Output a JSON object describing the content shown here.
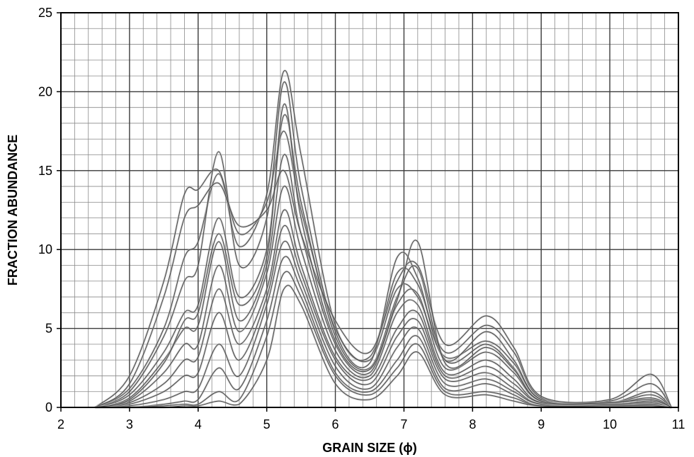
{
  "chart_data": {
    "type": "line",
    "title": "",
    "xlabel": "GRAIN SIZE (ϕ)",
    "ylabel": "FRACTION ABUNDANCE",
    "xlim": [
      2,
      11
    ],
    "ylim": [
      0,
      25
    ],
    "x_ticks": [
      2,
      3,
      4,
      5,
      6,
      7,
      8,
      9,
      10,
      11
    ],
    "y_ticks": [
      0,
      5,
      10,
      15,
      20,
      25
    ],
    "grid": true,
    "grid_minor_x_step": 0.2,
    "grid_minor_y_step": 1,
    "legend": "none",
    "line_color": "#3a3a3a",
    "series_count_depicted": 14,
    "series": [
      {
        "x": [
          2.5,
          3.0,
          3.5,
          3.8,
          4.0,
          4.3,
          4.6,
          5.0,
          5.25,
          5.5,
          6.0,
          6.5,
          6.9,
          7.2,
          7.6,
          8.2,
          8.6,
          9.0,
          10.0,
          10.6,
          10.9
        ],
        "values": [
          0,
          1.2,
          5.0,
          9.5,
          10.5,
          14.8,
          10.2,
          13.5,
          21.3,
          16.0,
          5.2,
          3.2,
          8.5,
          7.8,
          3.5,
          5.2,
          3.5,
          0.6,
          0.4,
          1.5,
          0
        ]
      },
      {
        "x": [
          2.5,
          3.0,
          3.5,
          3.8,
          4.0,
          4.3,
          4.6,
          5.0,
          5.25,
          5.5,
          6.0,
          6.5,
          6.9,
          7.2,
          7.6,
          8.2,
          8.6,
          9.0,
          10.0,
          10.6,
          10.9
        ],
        "values": [
          0,
          2.0,
          8.0,
          13.5,
          13.8,
          15.0,
          11.0,
          13.0,
          17.5,
          12.5,
          5.0,
          3.0,
          7.5,
          7.0,
          3.2,
          4.2,
          2.8,
          0.5,
          0.3,
          1.0,
          0
        ]
      },
      {
        "x": [
          2.5,
          3.0,
          3.5,
          3.8,
          4.0,
          4.3,
          4.6,
          5.0,
          5.25,
          5.5,
          6.0,
          6.5,
          6.9,
          7.2,
          7.6,
          8.2,
          8.6,
          9.0,
          10.0,
          10.6,
          10.9
        ],
        "values": [
          0,
          1.0,
          4.5,
          8.0,
          9.0,
          16.2,
          9.0,
          12.0,
          20.6,
          14.0,
          4.8,
          2.8,
          9.5,
          8.2,
          3.0,
          4.8,
          3.0,
          0.5,
          0.3,
          0.8,
          0
        ]
      },
      {
        "x": [
          2.5,
          3.0,
          3.5,
          3.8,
          4.0,
          4.3,
          4.6,
          5.0,
          5.25,
          5.5,
          6.0,
          6.5,
          6.9,
          7.2,
          7.6,
          8.2,
          8.6,
          9.0,
          10.0,
          10.6,
          10.9
        ],
        "values": [
          0,
          0.8,
          3.5,
          6.0,
          6.5,
          12.0,
          7.0,
          10.0,
          18.5,
          13.0,
          4.5,
          2.5,
          7.0,
          8.8,
          3.0,
          4.0,
          2.5,
          0.4,
          0.3,
          0.6,
          0
        ]
      },
      {
        "x": [
          2.5,
          3.0,
          3.5,
          3.8,
          4.0,
          4.3,
          4.6,
          5.0,
          5.25,
          5.5,
          6.0,
          6.5,
          6.9,
          7.2,
          7.6,
          8.2,
          8.6,
          9.0,
          10.0,
          10.6,
          10.9
        ],
        "values": [
          0,
          0.6,
          3.0,
          5.0,
          5.2,
          10.5,
          5.5,
          9.0,
          16.0,
          11.0,
          4.0,
          2.2,
          6.5,
          7.2,
          2.5,
          3.5,
          2.2,
          0.4,
          0.2,
          0.4,
          0
        ]
      },
      {
        "x": [
          2.5,
          3.0,
          3.5,
          3.8,
          4.0,
          4.3,
          4.6,
          5.0,
          5.25,
          5.5,
          6.0,
          6.5,
          6.9,
          7.2,
          7.6,
          8.2,
          8.6,
          9.0,
          10.0,
          10.6,
          10.9
        ],
        "values": [
          0,
          0.4,
          2.2,
          4.0,
          4.0,
          9.0,
          4.8,
          8.5,
          14.0,
          10.0,
          3.6,
          2.0,
          6.0,
          6.5,
          2.2,
          3.0,
          1.8,
          0.3,
          0.2,
          0.3,
          0
        ]
      },
      {
        "x": [
          2.5,
          3.0,
          3.5,
          3.8,
          4.0,
          4.3,
          4.6,
          5.0,
          5.25,
          5.5,
          6.0,
          6.5,
          6.9,
          7.2,
          7.6,
          8.2,
          8.6,
          9.0,
          10.0,
          10.6,
          10.9
        ],
        "values": [
          0,
          0.3,
          1.5,
          3.0,
          3.2,
          7.5,
          4.0,
          7.5,
          12.5,
          9.0,
          3.2,
          1.8,
          5.0,
          6.0,
          2.0,
          2.6,
          1.5,
          0.3,
          0.2,
          0.2,
          0
        ]
      },
      {
        "x": [
          2.5,
          3.0,
          3.5,
          3.8,
          4.0,
          4.3,
          4.6,
          5.0,
          5.25,
          5.5,
          6.0,
          6.5,
          6.9,
          7.2,
          7.6,
          8.2,
          8.6,
          9.0,
          10.0,
          10.6,
          10.9
        ],
        "values": [
          0,
          0.2,
          1.0,
          2.0,
          2.2,
          6.0,
          3.0,
          7.0,
          11.5,
          8.5,
          3.0,
          1.5,
          4.5,
          5.5,
          1.8,
          2.2,
          1.2,
          0.2,
          0.1,
          0.2,
          0
        ]
      },
      {
        "x": [
          2.5,
          3.0,
          3.5,
          3.8,
          4.0,
          4.3,
          4.6,
          5.0,
          5.25,
          5.5,
          6.0,
          6.5,
          6.9,
          7.2,
          7.6,
          8.2,
          8.6,
          9.0,
          10.0,
          10.6,
          10.9
        ],
        "values": [
          0,
          0.1,
          0.5,
          1.0,
          1.2,
          4.0,
          2.0,
          6.5,
          10.5,
          8.0,
          2.6,
          1.2,
          3.8,
          5.0,
          1.5,
          1.8,
          1.0,
          0.2,
          0.1,
          0.1,
          0
        ]
      },
      {
        "x": [
          2.5,
          3.0,
          3.5,
          3.8,
          4.0,
          4.3,
          4.6,
          5.0,
          5.25,
          5.5,
          6.0,
          6.5,
          6.9,
          7.2,
          7.6,
          8.2,
          8.6,
          9.0,
          10.0,
          10.6,
          10.9
        ],
        "values": [
          0,
          0,
          0.2,
          0.4,
          0.5,
          2.5,
          1.2,
          5.5,
          9.5,
          7.5,
          2.2,
          1.0,
          3.0,
          4.5,
          1.2,
          1.5,
          0.8,
          0.1,
          0.1,
          0.1,
          0
        ]
      },
      {
        "x": [
          2.5,
          3.0,
          3.5,
          3.8,
          4.0,
          4.3,
          4.6,
          5.0,
          5.25,
          5.5,
          6.0,
          6.5,
          6.9,
          7.2,
          7.6,
          8.2,
          8.6,
          9.0,
          10.0,
          10.6,
          10.9
        ],
        "values": [
          0,
          0,
          0.1,
          0.2,
          0.2,
          1.0,
          0.5,
          4.5,
          8.5,
          7.0,
          2.0,
          0.8,
          2.5,
          4.0,
          1.0,
          1.0,
          0.6,
          0.1,
          0.1,
          0.1,
          0
        ]
      },
      {
        "x": [
          2.5,
          3.0,
          3.5,
          3.8,
          4.0,
          4.3,
          4.6,
          5.0,
          5.25,
          5.5,
          6.0,
          6.5,
          6.9,
          7.2,
          7.6,
          8.2,
          8.6,
          9.0,
          10.0,
          10.6,
          10.9
        ],
        "values": [
          0,
          0,
          0,
          0.1,
          0.1,
          0.4,
          0.2,
          3.0,
          7.5,
          6.5,
          1.5,
          0.5,
          2.0,
          3.5,
          0.8,
          0.8,
          0.4,
          0.1,
          0.1,
          0.1,
          0
        ]
      },
      {
        "x": [
          2.5,
          3.0,
          3.5,
          3.8,
          4.0,
          4.3,
          4.6,
          5.0,
          5.25,
          5.5,
          6.0,
          6.5,
          6.9,
          7.2,
          7.6,
          8.2,
          8.6,
          9.0,
          10.0,
          10.6,
          10.9
        ],
        "values": [
          0,
          1.5,
          7.0,
          12.0,
          12.8,
          14.2,
          11.5,
          12.5,
          15.0,
          11.0,
          5.5,
          3.5,
          8.0,
          9.0,
          4.0,
          5.8,
          3.8,
          0.7,
          0.5,
          2.1,
          0
        ]
      },
      {
        "x": [
          2.5,
          3.0,
          3.5,
          3.8,
          4.0,
          4.3,
          4.6,
          5.0,
          5.25,
          5.5,
          6.0,
          6.5,
          6.9,
          7.2,
          7.6,
          8.2,
          8.6,
          9.0,
          10.0,
          10.6,
          10.9
        ],
        "values": [
          0,
          0.5,
          2.8,
          5.5,
          6.0,
          11.0,
          6.5,
          9.5,
          19.2,
          12.0,
          4.2,
          2.4,
          6.8,
          10.5,
          2.8,
          3.8,
          2.4,
          0.4,
          0.3,
          0.5,
          0
        ]
      }
    ]
  }
}
